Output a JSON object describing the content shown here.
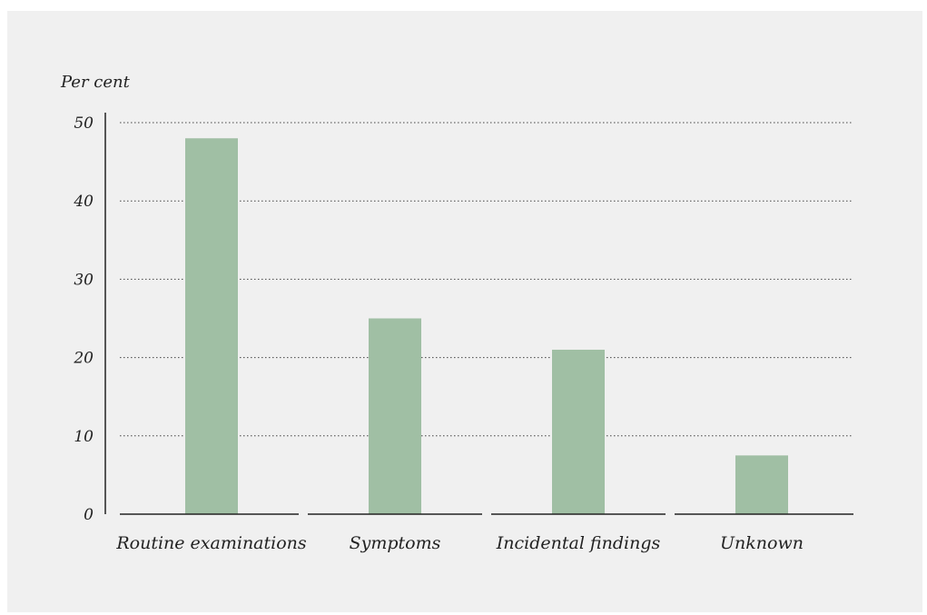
{
  "chart_data": {
    "type": "bar",
    "ylabel": "Per cent",
    "categories": [
      "Routine examinations",
      "Symptoms",
      "Incidental findings",
      "Unknown"
    ],
    "values": [
      48,
      25,
      21,
      7.5
    ],
    "ylim": [
      0,
      50
    ],
    "yticks": [
      0,
      10,
      20,
      30,
      40,
      50
    ],
    "grid": true,
    "bar_color": "#a0bfa4"
  }
}
